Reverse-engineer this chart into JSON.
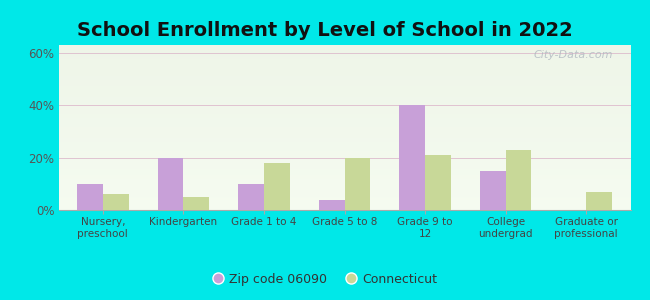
{
  "title": "School Enrollment by Level of School in 2022",
  "categories": [
    "Nursery,\npreschool",
    "Kindergarten",
    "Grade 1 to 4",
    "Grade 5 to 8",
    "Grade 9 to\n12",
    "College\nundergrad",
    "Graduate or\nprofessional"
  ],
  "zip_values": [
    10,
    20,
    10,
    4,
    40,
    15,
    0
  ],
  "ct_values": [
    6,
    5,
    18,
    20,
    21,
    23,
    7
  ],
  "zip_color": "#c8a0d8",
  "ct_color": "#c8d898",
  "ylim": [
    0,
    63
  ],
  "yticks": [
    0,
    20,
    40,
    60
  ],
  "yticklabels": [
    "0%",
    "20%",
    "40%",
    "60%"
  ],
  "background_color": "#00e8e8",
  "plot_bg_top": "#eef5e8",
  "plot_bg_bottom": "#f5fbf0",
  "title_fontsize": 14,
  "legend_labels": [
    "Zip code 06090",
    "Connecticut"
  ],
  "watermark": "City-Data.com",
  "bar_width": 0.32
}
